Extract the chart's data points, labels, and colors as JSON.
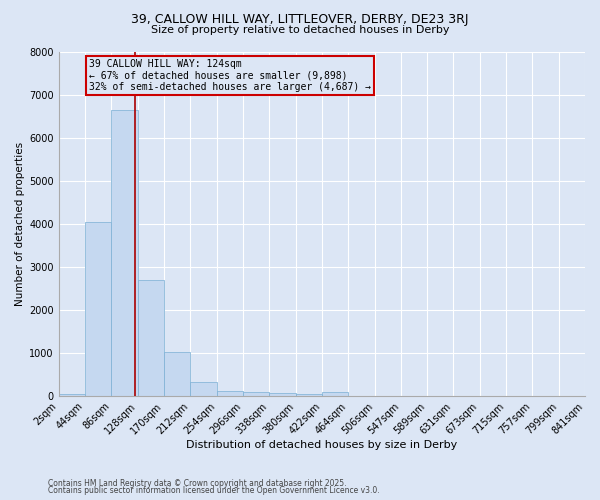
{
  "title_line1": "39, CALLOW HILL WAY, LITTLEOVER, DERBY, DE23 3RJ",
  "title_line2": "Size of property relative to detached houses in Derby",
  "xlabel": "Distribution of detached houses by size in Derby",
  "ylabel": "Number of detached properties",
  "bar_color": "#c5d8f0",
  "bar_edge_color": "#7aafd4",
  "background_color": "#dce6f5",
  "grid_color": "#ffffff",
  "vline_color": "#aa0000",
  "vline_x": 124,
  "annotation_text": "39 CALLOW HILL WAY: 124sqm\n← 67% of detached houses are smaller (9,898)\n32% of semi-detached houses are larger (4,687) →",
  "annotation_box_color": "#cc0000",
  "bin_edges": [
    2,
    44,
    86,
    128,
    170,
    212,
    254,
    296,
    338,
    380,
    422,
    464,
    506,
    547,
    589,
    631,
    673,
    715,
    757,
    799,
    841
  ],
  "bin_labels": [
    "2sqm",
    "44sqm",
    "86sqm",
    "128sqm",
    "170sqm",
    "212sqm",
    "254sqm",
    "296sqm",
    "338sqm",
    "380sqm",
    "422sqm",
    "464sqm",
    "506sqm",
    "547sqm",
    "589sqm",
    "631sqm",
    "673sqm",
    "715sqm",
    "757sqm",
    "799sqm",
    "841sqm"
  ],
  "bar_heights": [
    50,
    4050,
    6650,
    2700,
    1020,
    330,
    120,
    85,
    75,
    50,
    85,
    0,
    0,
    0,
    0,
    0,
    0,
    0,
    0,
    0
  ],
  "ylim": [
    0,
    8000
  ],
  "yticks": [
    0,
    1000,
    2000,
    3000,
    4000,
    5000,
    6000,
    7000,
    8000
  ],
  "footnote1": "Contains HM Land Registry data © Crown copyright and database right 2025.",
  "footnote2": "Contains public sector information licensed under the Open Government Licence v3.0."
}
